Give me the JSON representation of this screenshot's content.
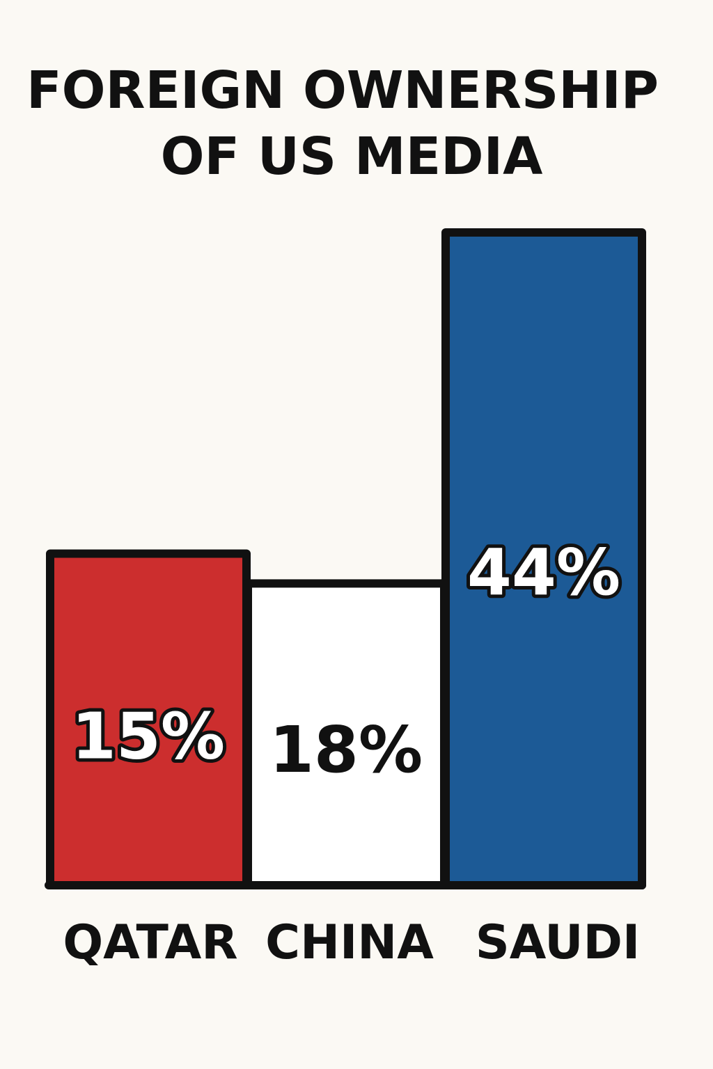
{
  "chart_data": {
    "type": "bar",
    "title_lines": [
      "FOREIGN OWNERSHIP",
      "OF US MEDIA"
    ],
    "categories": [
      "QATAR",
      "CHINA",
      "SAUDI"
    ],
    "values": [
      15,
      18,
      44
    ],
    "value_labels": [
      "15%",
      "18%",
      "44%"
    ],
    "colors": [
      "#cc2e2e",
      "#ffffff",
      "#1c5a96"
    ],
    "value_label_fill": [
      "#ffffff",
      "#111111",
      "#ffffff"
    ],
    "value_label_outline": [
      true,
      false,
      true
    ],
    "outline_color": "#111111",
    "xlabel": "",
    "ylabel": "",
    "grid": false,
    "legend": "none"
  }
}
